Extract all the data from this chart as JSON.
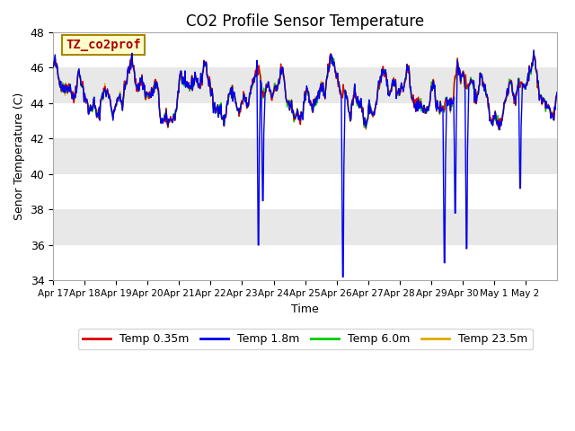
{
  "title": "CO2 Profile Sensor Temperature",
  "ylabel": "Senor Temperature (C)",
  "xlabel": "Time",
  "annotation": "TZ_co2prof",
  "ylim": [
    34,
    48
  ],
  "legend": [
    "Temp 0.35m",
    "Temp 1.8m",
    "Temp 6.0m",
    "Temp 23.5m"
  ],
  "colors": [
    "#dd0000",
    "#0000ee",
    "#00cc00",
    "#ddaa00"
  ],
  "seed": 42,
  "n_points": 800,
  "dip_blue_x": [
    6.5,
    6.65,
    9.2,
    12.4,
    12.75,
    13.1,
    14.8
  ],
  "dip_blue_y": [
    36.0,
    38.5,
    34.2,
    35.0,
    37.8,
    35.8,
    39.2
  ],
  "tick_labels": [
    "Apr 17",
    "Apr 18",
    "Apr 19",
    "Apr 20",
    "Apr 21",
    "Apr 22",
    "Apr 23",
    "Apr 24",
    "Apr 25",
    "Apr 26",
    "Apr 27",
    "Apr 28",
    "Apr 29",
    "Apr 30",
    "May 1",
    "May 2"
  ],
  "title_fontsize": 12,
  "axis_fontsize": 9,
  "legend_fontsize": 9,
  "annotation_fontsize": 10,
  "band_colors": [
    "#ffffff",
    "#e8e8e8"
  ],
  "yticks": [
    34,
    36,
    38,
    40,
    42,
    44,
    46,
    48
  ]
}
